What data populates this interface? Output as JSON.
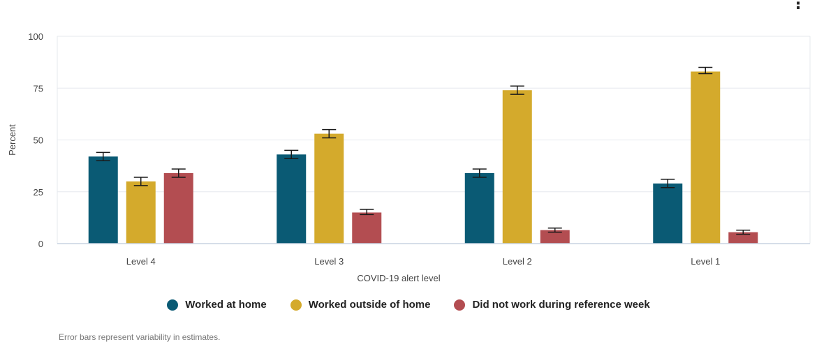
{
  "page": {
    "footnote": "Error bars represent variability in estimates."
  },
  "colors": {
    "series": [
      "#0a5a74",
      "#d4aa2c",
      "#b34d51"
    ],
    "grid": "#e5e8ee",
    "axis": "#c9d3e2",
    "errorbar": "#1a1a1a"
  },
  "chart_data": {
    "type": "bar",
    "title": "",
    "xlabel": "COVID-19 alert level",
    "ylabel": "Percent",
    "ylim": [
      0,
      100
    ],
    "yticks": [
      0,
      25,
      50,
      75,
      100
    ],
    "grid": true,
    "legend_position": "bottom",
    "categories": [
      "Level 4",
      "Level 3",
      "Level 2",
      "Level 1"
    ],
    "series": [
      {
        "name": "Worked at home",
        "values": [
          42,
          43,
          34,
          29
        ],
        "error_low": [
          40,
          41,
          32,
          27
        ],
        "error_high": [
          44,
          45,
          36,
          31
        ]
      },
      {
        "name": "Worked outside of home",
        "values": [
          30,
          53,
          74,
          83
        ],
        "error_low": [
          28,
          51,
          72,
          82
        ],
        "error_high": [
          32,
          55,
          76,
          85
        ]
      },
      {
        "name": "Did not work during reference week",
        "values": [
          34,
          15,
          6.5,
          5.5
        ],
        "error_low": [
          32,
          14,
          5.5,
          4.5
        ],
        "error_high": [
          36,
          16.5,
          7.5,
          6.5
        ]
      }
    ]
  }
}
